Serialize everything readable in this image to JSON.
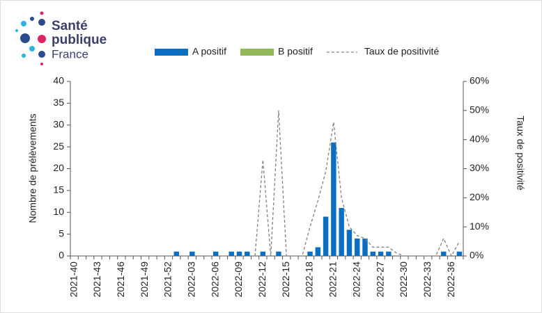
{
  "logo": {
    "line1": "Santé",
    "line2": "publique",
    "line3": "France"
  },
  "chart_data": {
    "type": "bar",
    "categories": [
      "2021-40",
      null,
      null,
      "2021-43",
      null,
      null,
      "2021-46",
      null,
      null,
      "2021-49",
      null,
      null,
      "2021-52",
      null,
      null,
      "2022-03",
      null,
      null,
      "2022-06",
      null,
      null,
      "2022-09",
      null,
      null,
      "2022-12",
      null,
      null,
      "2022-15",
      null,
      null,
      "2022-18",
      null,
      null,
      "2022-21",
      null,
      null,
      "2022-24",
      null,
      null,
      "2022-27",
      null,
      null,
      "2022-30",
      null,
      null,
      "2022-33",
      null,
      null,
      "2022-36",
      null
    ],
    "series": [
      {
        "name": "A positif",
        "type": "bar",
        "color": "#0a6fc2",
        "values": [
          0,
          0,
          0,
          0,
          0,
          0,
          0,
          0,
          0,
          0,
          0,
          0,
          0,
          1,
          0,
          1,
          0,
          0,
          1,
          0,
          1,
          1,
          1,
          0,
          1,
          0,
          1,
          0,
          0,
          0,
          1,
          2,
          9,
          26,
          11,
          6,
          4,
          4,
          1,
          1,
          1,
          0,
          0,
          0,
          0,
          0,
          0,
          1,
          0,
          1
        ]
      },
      {
        "name": "B positif",
        "type": "bar",
        "color": "#92b955",
        "values": [
          0,
          0,
          0,
          0,
          0,
          0,
          0,
          0,
          0,
          0,
          0,
          0,
          0,
          0,
          0,
          0,
          0,
          0,
          0,
          0,
          0,
          0,
          0,
          0,
          0,
          0,
          0,
          0,
          0,
          0,
          0,
          0,
          0,
          0,
          0,
          0,
          0,
          0,
          0,
          0,
          0,
          0,
          0,
          0,
          0,
          0,
          0,
          0,
          0,
          0
        ]
      },
      {
        "name": "Taux de positivité",
        "type": "line",
        "axis": "y2",
        "color": "#808080",
        "dashed": true,
        "values": [
          null,
          null,
          null,
          null,
          null,
          null,
          null,
          null,
          null,
          null,
          null,
          null,
          null,
          null,
          null,
          null,
          null,
          null,
          null,
          null,
          null,
          null,
          null,
          0,
          33,
          0,
          50,
          0,
          0,
          0,
          10,
          19,
          29,
          46,
          20,
          10,
          7,
          6,
          3,
          3,
          3,
          1,
          0,
          0,
          0,
          0,
          0,
          6,
          0,
          5
        ]
      }
    ],
    "y_label": "Nombre de prélèvements",
    "y2_label": "Taux de positivité",
    "ylim": [
      0,
      40
    ],
    "yticks": [
      0,
      5,
      10,
      15,
      20,
      25,
      30,
      35,
      40
    ],
    "y2lim": [
      0,
      60
    ],
    "y2ticks": [
      {
        "value": 0,
        "label": "0%"
      },
      {
        "value": 10,
        "label": "10%"
      },
      {
        "value": 20,
        "label": "20%"
      },
      {
        "value": 30,
        "label": "30%"
      },
      {
        "value": 40,
        "label": "40%"
      },
      {
        "value": 50,
        "label": "50%"
      },
      {
        "value": 60,
        "label": "60%"
      }
    ],
    "grid": false,
    "legend": "top"
  }
}
